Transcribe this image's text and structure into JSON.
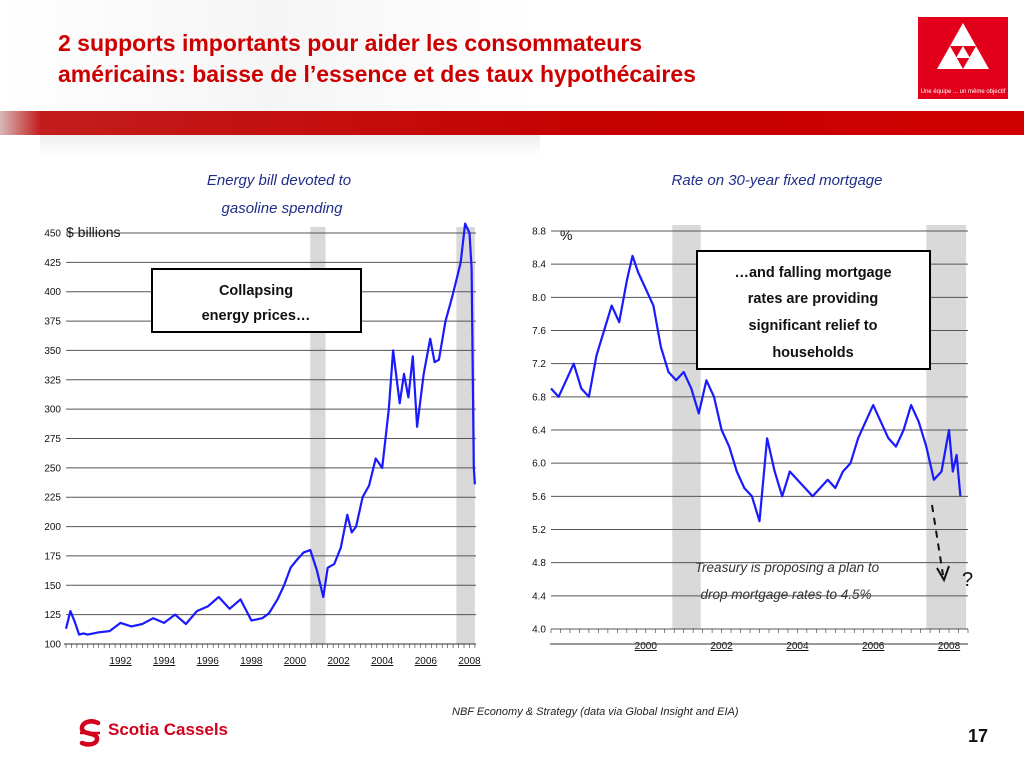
{
  "slide": {
    "title_line1": "2 supports importants pour aider les consommateurs",
    "title_line2": "américains: baisse de l’essence et des taux hypothécaires",
    "logo_tagline": "Une équipe ... un même objectif",
    "source": "NBF Economy & Strategy (data via Global Insight and EIA)",
    "footer_brand": "Scotia Cassels",
    "page_number": "17",
    "colors": {
      "title": "#cc0000",
      "band": "#c40000",
      "series": "#1a1aff",
      "recession": "#d9d9d9",
      "brand": "#d1001c"
    }
  },
  "chart_data": [
    {
      "type": "line",
      "title_line1": "Energy bill devoted to",
      "title_line2": "gasoline spending",
      "unit_label": "$ billions",
      "ylim": [
        100,
        450
      ],
      "y_ticks": [
        "100",
        "125",
        "150",
        "175",
        "200",
        "225",
        "250",
        "275",
        "300",
        "325",
        "350",
        "375",
        "400",
        "425",
        "450"
      ],
      "x_ticks": [
        "1992",
        "1994",
        "1996",
        "1998",
        "2000",
        "2002",
        "2004",
        "2006",
        "2008"
      ],
      "xlim": [
        1990.0,
        2008.8
      ],
      "recessions": [
        [
          2001.2,
          2001.9
        ],
        [
          2007.9,
          2008.75
        ]
      ],
      "annotation": {
        "line1": "Collapsing",
        "line2": "energy prices…"
      },
      "series": [
        {
          "x": [
            1990.0,
            1990.2,
            1990.4,
            1990.6,
            1990.8,
            1991.0,
            1991.5,
            1992.0,
            1992.5,
            1993.0,
            1993.5,
            1994.0,
            1994.5,
            1995.0,
            1995.5,
            1996.0,
            1996.5,
            1997.0,
            1997.5,
            1998.0,
            1998.5,
            1999.0,
            1999.3,
            1999.7,
            2000.0,
            2000.3,
            2000.6,
            2000.9,
            2001.2,
            2001.5,
            2001.8,
            2002.0,
            2002.3,
            2002.6,
            2002.9,
            2003.1,
            2003.3,
            2003.6,
            2003.9,
            2004.2,
            2004.5,
            2004.8,
            2005.0,
            2005.3,
            2005.5,
            2005.7,
            2005.9,
            2006.1,
            2006.4,
            2006.7,
            2006.9,
            2007.1,
            2007.4,
            2007.7,
            2007.9,
            2008.1,
            2008.3,
            2008.5,
            2008.6,
            2008.7,
            2008.75
          ],
          "values": [
            113,
            128,
            119,
            108,
            109,
            108,
            110,
            111,
            118,
            115,
            117,
            122,
            118,
            125,
            117,
            128,
            132,
            140,
            130,
            138,
            120,
            122,
            126,
            138,
            150,
            165,
            172,
            178,
            180,
            163,
            140,
            165,
            168,
            182,
            210,
            195,
            200,
            225,
            235,
            258,
            250,
            300,
            350,
            305,
            330,
            310,
            345,
            285,
            330,
            360,
            340,
            342,
            375,
            395,
            410,
            425,
            458,
            450,
            420,
            250,
            236
          ]
        }
      ]
    },
    {
      "type": "line",
      "title": "Rate on 30-year fixed mortgage",
      "unit_label": "%",
      "ylim": [
        4.0,
        8.8
      ],
      "y_ticks": [
        "4.0",
        "4.4",
        "4.8",
        "5.2",
        "5.6",
        "6.0",
        "6.4",
        "6.8",
        "7.2",
        "7.6",
        "8.0",
        "8.4",
        "8.8"
      ],
      "x_ticks": [
        "2000",
        "2002",
        "2004",
        "2006",
        "2008"
      ],
      "xlim": [
        1998.0,
        2009.0
      ],
      "recessions": [
        [
          2001.2,
          2001.95
        ],
        [
          2007.9,
          2008.95
        ]
      ],
      "annotation": {
        "line1": "…and falling mortgage",
        "line2": "rates are providing",
        "line3": "significant relief to",
        "line4": "households"
      },
      "note": {
        "line1": "Treasury is proposing a plan to",
        "line2": "drop mortgage rates to 4.5%"
      },
      "arrow_target_label": "?",
      "series": [
        {
          "x": [
            1998.0,
            1998.2,
            1998.4,
            1998.6,
            1998.8,
            1999.0,
            1999.2,
            1999.4,
            1999.6,
            1999.8,
            2000.0,
            2000.15,
            2000.3,
            2000.5,
            2000.7,
            2000.9,
            2001.1,
            2001.3,
            2001.5,
            2001.7,
            2001.9,
            2002.1,
            2002.3,
            2002.5,
            2002.7,
            2002.9,
            2003.1,
            2003.3,
            2003.5,
            2003.7,
            2003.9,
            2004.1,
            2004.3,
            2004.5,
            2004.7,
            2004.9,
            2005.1,
            2005.3,
            2005.5,
            2005.7,
            2005.9,
            2006.1,
            2006.3,
            2006.5,
            2006.7,
            2006.9,
            2007.1,
            2007.3,
            2007.5,
            2007.7,
            2007.9,
            2008.1,
            2008.3,
            2008.5,
            2008.6,
            2008.7,
            2008.8
          ],
          "values": [
            6.9,
            6.8,
            7.0,
            7.2,
            6.9,
            6.8,
            7.3,
            7.6,
            7.9,
            7.7,
            8.2,
            8.5,
            8.3,
            8.1,
            7.9,
            7.4,
            7.1,
            7.0,
            7.1,
            6.9,
            6.6,
            7.0,
            6.8,
            6.4,
            6.2,
            5.9,
            5.7,
            5.6,
            5.3,
            6.3,
            5.9,
            5.6,
            5.9,
            5.8,
            5.7,
            5.6,
            5.7,
            5.8,
            5.7,
            5.9,
            6.0,
            6.3,
            6.5,
            6.7,
            6.5,
            6.3,
            6.2,
            6.4,
            6.7,
            6.5,
            6.2,
            5.8,
            5.9,
            6.4,
            5.9,
            6.1,
            5.6
          ]
        }
      ]
    }
  ]
}
